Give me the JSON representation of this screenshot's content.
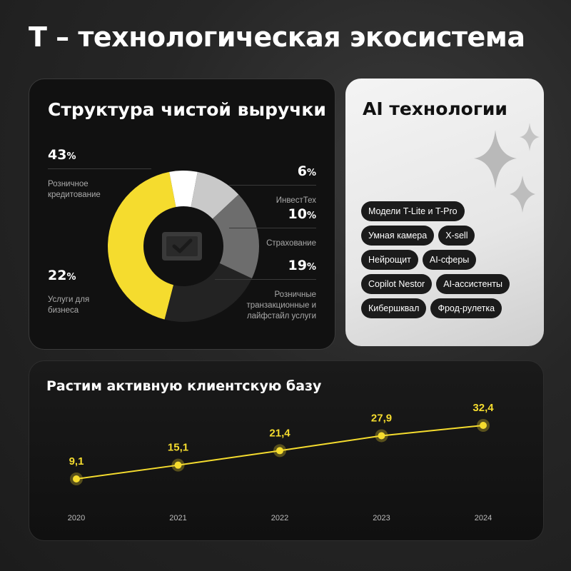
{
  "title": "Т – технологическая экосистема",
  "revenue": {
    "title": "Структура чистой выручки",
    "segments": [
      {
        "pct": "43",
        "unit": "%",
        "label": "Розничное кредитование",
        "color": "#f5dc2e"
      },
      {
        "pct": "6",
        "unit": "%",
        "label": "ИнвестТех",
        "color": "#ffffff"
      },
      {
        "pct": "10",
        "unit": "%",
        "label": "Страхование",
        "color": "#c9c9c9"
      },
      {
        "pct": "19",
        "unit": "%",
        "label": "Розничные транзакционные и лайфстайл услуги",
        "color": "#6d6d6d"
      },
      {
        "pct": "22",
        "unit": "%",
        "label": "Услуги для бизнеса",
        "color": "#232323"
      }
    ]
  },
  "ai": {
    "title": "AI технологии",
    "chips": [
      [
        "Модели T-Lite и T-Pro"
      ],
      [
        "Умная камера",
        "X-sell"
      ],
      [
        "Нейрощит",
        "AI-сферы"
      ],
      [
        "Copilot Nestor",
        "AI-ассистенты"
      ],
      [
        "Кибершквал",
        "Фрод-рулетка"
      ]
    ]
  },
  "chart_data": {
    "type": "line",
    "title": "Растим активную клиентскую базу",
    "x": [
      "2020",
      "2021",
      "2022",
      "2023",
      "2024"
    ],
    "values": [
      9.1,
      15.1,
      21.4,
      27.9,
      32.4
    ],
    "value_labels": [
      "9,1",
      "15,1",
      "21,4",
      "27,9",
      "32,4"
    ],
    "xlabel": "",
    "ylabel": "",
    "grid": false,
    "line_color": "#f5dc2e",
    "ylim": [
      0,
      40
    ]
  }
}
